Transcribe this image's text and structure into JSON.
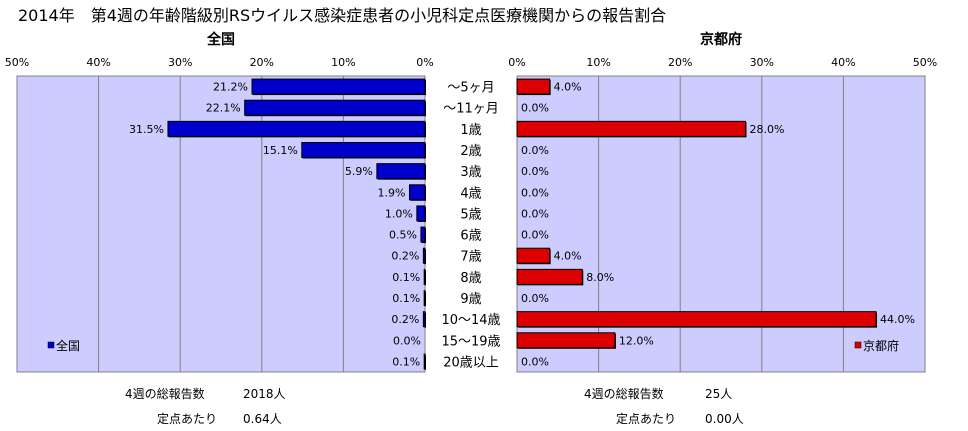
{
  "title": "2014年　第4週の年齢階級別RSウイルス感染症患者の小児科定点医療機関からの報告割合",
  "chart_data": [
    {
      "type": "bar",
      "orientation": "horizontal",
      "direction": "right-to-left",
      "title": "全国",
      "categories": [
        "～5ヶ月",
        "～11ヶ月",
        "1歳",
        "2歳",
        "3歳",
        "4歳",
        "5歳",
        "6歳",
        "7歳",
        "8歳",
        "9歳",
        "10～14歳",
        "15～19歳",
        "20歳以上"
      ],
      "series": [
        {
          "name": "全国",
          "values": [
            21.2,
            22.1,
            31.5,
            15.1,
            5.9,
            1.9,
            1.0,
            0.5,
            0.2,
            0.1,
            0.1,
            0.2,
            0.0,
            0.1
          ]
        }
      ],
      "data_labels": [
        "21.2%",
        "22.1%",
        "31.5%",
        "15.1%",
        "5.9%",
        "1.9%",
        "1.0%",
        "0.5%",
        "0.2%",
        "0.1%",
        "0.1%",
        "0.2%",
        "0.0%",
        "0.1%"
      ],
      "xlim": [
        0,
        50
      ],
      "xticks": [
        "0%",
        "10%",
        "20%",
        "30%",
        "40%",
        "50%"
      ],
      "grid": true,
      "legend_position": "bottom-left",
      "bar_color": "#0000cc",
      "plot_bg": "#ccccff"
    },
    {
      "type": "bar",
      "orientation": "horizontal",
      "direction": "left-to-right",
      "title": "京都府",
      "categories": [
        "～5ヶ月",
        "～11ヶ月",
        "1歳",
        "2歳",
        "3歳",
        "4歳",
        "5歳",
        "6歳",
        "7歳",
        "8歳",
        "9歳",
        "10～14歳",
        "15～19歳",
        "20歳以上"
      ],
      "series": [
        {
          "name": "京都府",
          "values": [
            4.0,
            0.0,
            28.0,
            0.0,
            0.0,
            0.0,
            0.0,
            0.0,
            4.0,
            8.0,
            0.0,
            44.0,
            12.0,
            0.0
          ]
        }
      ],
      "data_labels": [
        "4.0%",
        "0.0%",
        "28.0%",
        "0.0%",
        "0.0%",
        "0.0%",
        "0.0%",
        "0.0%",
        "4.0%",
        "8.0%",
        "0.0%",
        "44.0%",
        "12.0%",
        "0.0%"
      ],
      "xlim": [
        0,
        50
      ],
      "xticks": [
        "0%",
        "10%",
        "20%",
        "30%",
        "40%",
        "50%"
      ],
      "grid": true,
      "legend_position": "bottom-right",
      "bar_color": "#dd0000",
      "plot_bg": "#ccccff"
    }
  ],
  "summary": {
    "national": {
      "total_label": "4週の総報告数",
      "total_value": "2018人",
      "per_label": "定点あたり",
      "per_value": "0.64人"
    },
    "kyoto": {
      "total_label": "4週の総報告数",
      "total_value": "25人",
      "per_label": "定点あたり",
      "per_value": "0.00人"
    }
  }
}
